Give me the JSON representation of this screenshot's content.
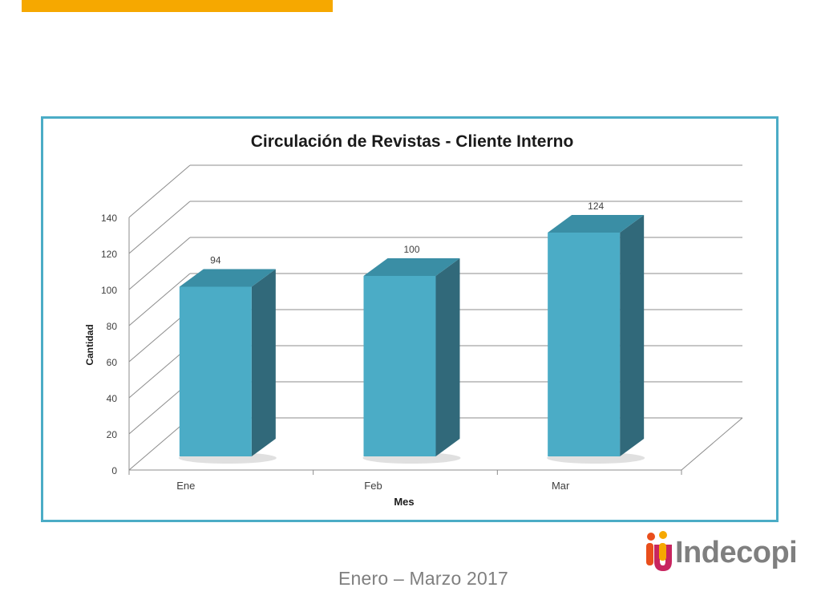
{
  "colors": {
    "accent_bar": "#f6a800",
    "frame": "#4bacc6",
    "bar_front": "#4bacc6",
    "bar_side": "#31697a",
    "bar_top": "#3a8ea5"
  },
  "chart_data": {
    "type": "bar",
    "title": "Circulación de Revistas - Cliente Interno",
    "xlabel": "Mes",
    "ylabel": "Cantidad",
    "categories": [
      "Ene",
      "Feb",
      "Mar"
    ],
    "values": [
      94,
      100,
      124
    ],
    "ylim": [
      0,
      140
    ],
    "yticks": [
      0,
      20,
      40,
      60,
      80,
      100,
      120,
      140
    ],
    "grid": true,
    "style": "3d-column"
  },
  "footer": {
    "date_range": "Enero – Marzo 2017"
  },
  "logo": {
    "text": "Indecopi",
    "icon": "indecopi-logo-icon"
  }
}
